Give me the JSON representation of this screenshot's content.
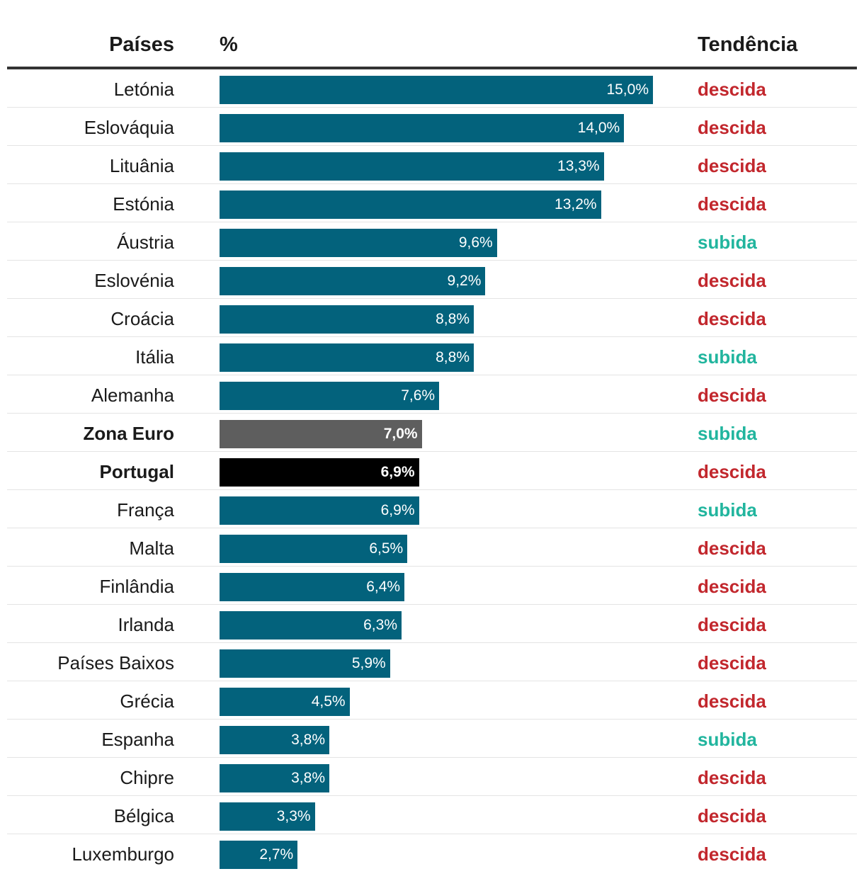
{
  "header": {
    "countries": "Países",
    "percent": "%",
    "trend": "Tendência"
  },
  "colors": {
    "bar_default": "#03627c",
    "bar_euro_zone": "#5e5e5e",
    "bar_portugal": "#000000",
    "trend_down": "#c2272d",
    "trend_up": "#21b59e"
  },
  "chart_data": {
    "type": "table",
    "columns": [
      "Países",
      "%",
      "Tendência"
    ],
    "value_max": 15.0,
    "rows": [
      {
        "country": "Letónia",
        "value": 15.0,
        "label": "15,0%",
        "trend": "descida"
      },
      {
        "country": "Eslováquia",
        "value": 14.0,
        "label": "14,0%",
        "trend": "descida"
      },
      {
        "country": "Lituânia",
        "value": 13.3,
        "label": "13,3%",
        "trend": "descida"
      },
      {
        "country": "Estónia",
        "value": 13.2,
        "label": "13,2%",
        "trend": "descida"
      },
      {
        "country": "Áustria",
        "value": 9.6,
        "label": "9,6%",
        "trend": "subida"
      },
      {
        "country": "Eslovénia",
        "value": 9.2,
        "label": "9,2%",
        "trend": "descida"
      },
      {
        "country": "Croácia",
        "value": 8.8,
        "label": "8,8%",
        "trend": "descida"
      },
      {
        "country": "Itália",
        "value": 8.8,
        "label": "8,8%",
        "trend": "subida"
      },
      {
        "country": "Alemanha",
        "value": 7.6,
        "label": "7,6%",
        "trend": "descida"
      },
      {
        "country": "Zona Euro",
        "value": 7.0,
        "label": "7,0%",
        "trend": "subida",
        "highlight": "euro_zone"
      },
      {
        "country": "Portugal",
        "value": 6.9,
        "label": "6,9%",
        "trend": "descida",
        "highlight": "portugal"
      },
      {
        "country": "França",
        "value": 6.9,
        "label": "6,9%",
        "trend": "subida"
      },
      {
        "country": "Malta",
        "value": 6.5,
        "label": "6,5%",
        "trend": "descida"
      },
      {
        "country": "Finlândia",
        "value": 6.4,
        "label": "6,4%",
        "trend": "descida"
      },
      {
        "country": "Irlanda",
        "value": 6.3,
        "label": "6,3%",
        "trend": "descida"
      },
      {
        "country": "Países Baixos",
        "value": 5.9,
        "label": "5,9%",
        "trend": "descida"
      },
      {
        "country": "Grécia",
        "value": 4.5,
        "label": "4,5%",
        "trend": "descida"
      },
      {
        "country": "Espanha",
        "value": 3.8,
        "label": "3,8%",
        "trend": "subida"
      },
      {
        "country": "Chipre",
        "value": 3.8,
        "label": "3,8%",
        "trend": "descida"
      },
      {
        "country": "Bélgica",
        "value": 3.3,
        "label": "3,3%",
        "trend": "descida"
      },
      {
        "country": "Luxemburgo",
        "value": 2.7,
        "label": "2,7%",
        "trend": "descida"
      }
    ]
  }
}
